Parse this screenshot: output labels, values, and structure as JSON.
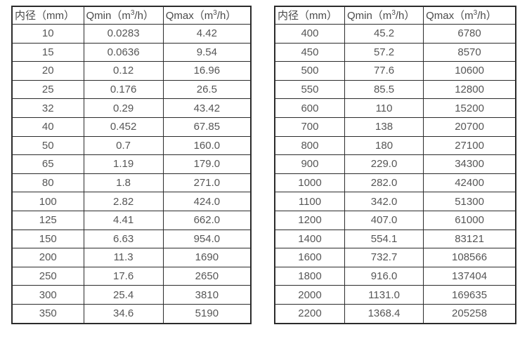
{
  "page": {
    "background": "#ffffff",
    "text_color": "#565656",
    "border_color": "#2b2b2b",
    "description_note": ""
  },
  "tables": [
    {
      "id": "small-diameter-flow-table",
      "header": {
        "diameter": "内径（mm）",
        "qmin": {
          "pre": "Qmin（m",
          "sup": "3",
          "post": "/h）"
        },
        "qmax": {
          "pre": "Qmax（m",
          "sup": "3",
          "post": "/h）"
        }
      },
      "rows": [
        [
          "10",
          "0.0283",
          "4.42"
        ],
        [
          "15",
          "0.0636",
          "9.54"
        ],
        [
          "20",
          "0.12",
          "16.96"
        ],
        [
          "25",
          "0.176",
          "26.5"
        ],
        [
          "32",
          "0.29",
          "43.42"
        ],
        [
          "40",
          "0.452",
          "67.85"
        ],
        [
          "50",
          "0.7",
          "160.0"
        ],
        [
          "65",
          "1.19",
          "179.0"
        ],
        [
          "80",
          "1.8",
          "271.0"
        ],
        [
          "100",
          "2.82",
          "424.0"
        ],
        [
          "125",
          "4.41",
          "662.0"
        ],
        [
          "150",
          "6.63",
          "954.0"
        ],
        [
          "200",
          "11.3",
          "1690"
        ],
        [
          "250",
          "17.6",
          "2650"
        ],
        [
          "300",
          "25.4",
          "3810"
        ],
        [
          "350",
          "34.6",
          "5190"
        ]
      ]
    },
    {
      "id": "large-diameter-flow-table",
      "header": {
        "diameter": "内径（mm）",
        "qmin": {
          "pre": "Qmin（m",
          "sup": "3",
          "post": "/h）"
        },
        "qmax": {
          "pre": "Qmax（m",
          "sup": "3",
          "post": "/h）"
        }
      },
      "rows": [
        [
          "400",
          "45.2",
          "6780"
        ],
        [
          "450",
          "57.2",
          "8570"
        ],
        [
          "500",
          "77.6",
          "10600"
        ],
        [
          "550",
          "85.5",
          "12800"
        ],
        [
          "600",
          "110",
          "15200"
        ],
        [
          "700",
          "138",
          "20700"
        ],
        [
          "800",
          "180",
          "27100"
        ],
        [
          "900",
          "229.0",
          "34300"
        ],
        [
          "1000",
          "282.0",
          "42400"
        ],
        [
          "1100",
          "342.0",
          "51300"
        ],
        [
          "1200",
          "407.0",
          "61000"
        ],
        [
          "1400",
          "554.1",
          "83121"
        ],
        [
          "1600",
          "732.7",
          "108566"
        ],
        [
          "1800",
          "916.0",
          "137404"
        ],
        [
          "2000",
          "1131.0",
          "169635"
        ],
        [
          "2200",
          "1368.4",
          "205258"
        ]
      ]
    }
  ]
}
